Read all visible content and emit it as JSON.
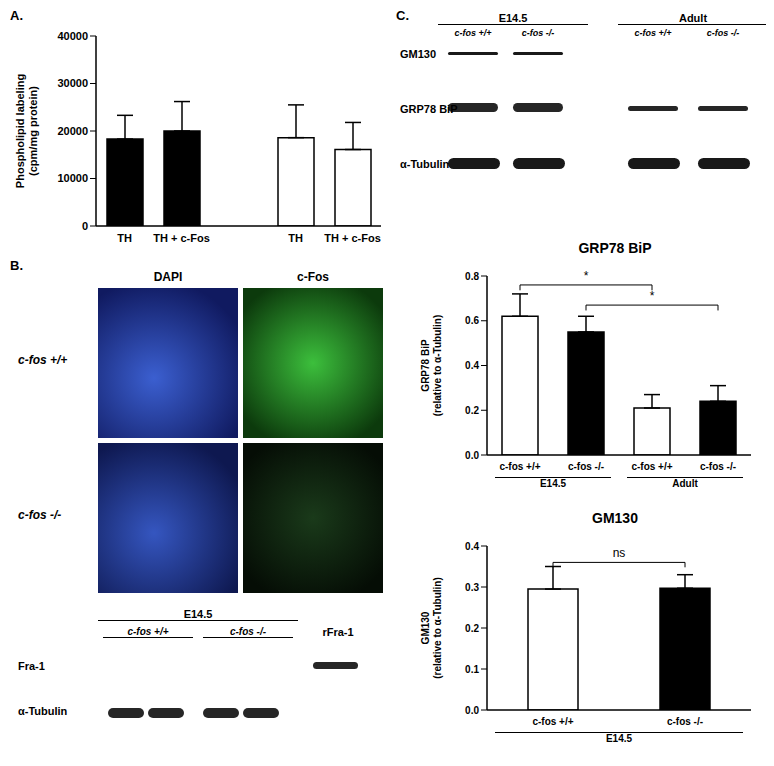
{
  "panels": [
    "A.",
    "B.",
    "C."
  ],
  "chart_data": [
    {
      "type": "bar",
      "ylabel": [
        "Phospholipid labeling",
        "(cpm/mg protein)"
      ],
      "categories": [
        "TH",
        "TH + c-Fos",
        null,
        "TH",
        "TH + c-Fos"
      ],
      "values": [
        18300,
        20000,
        null,
        18600,
        16100
      ],
      "errors": [
        5000,
        6200,
        null,
        6900,
        5700
      ],
      "colors": [
        "#000000",
        "#000000",
        "#000000",
        "#ffffff",
        "#ffffff"
      ],
      "ylim": [
        0,
        40000
      ],
      "yticks": [
        0,
        10000,
        20000,
        30000,
        40000
      ]
    },
    {
      "type": "bar",
      "title": "GRP78 BiP",
      "ylabel": [
        "GRP78 BiP",
        "(relative to α-Tubulin)"
      ],
      "categories": [
        "c-fos +/+",
        "c-fos -/-",
        "c-fos +/+",
        "c-fos -/-"
      ],
      "groups": [
        "E14.5",
        "Adult"
      ],
      "values": [
        0.62,
        0.55,
        0.21,
        0.24
      ],
      "errors": [
        0.1,
        0.07,
        0.06,
        0.07
      ],
      "colors": [
        "#ffffff",
        "#000000",
        "#ffffff",
        "#000000"
      ],
      "ylim": [
        0,
        0.8
      ],
      "yticks": [
        {
          "value": 0,
          "label": "0.0"
        },
        {
          "value": 0.2,
          "label": "0.2"
        },
        {
          "value": 0.4,
          "label": "0.4"
        },
        {
          "value": 0.6,
          "label": "0.6"
        },
        {
          "value": 0.8,
          "label": "0.8"
        }
      ],
      "significance": [
        {
          "from": 0,
          "to": 2,
          "y": 0.76,
          "label": "*"
        },
        {
          "from": 1,
          "to": 3,
          "y": 0.67,
          "label": "*"
        }
      ]
    },
    {
      "type": "bar",
      "title": "GM130",
      "ylabel": [
        "GM130",
        "(relative to α-Tubulin)"
      ],
      "categories": [
        "c-fos +/+",
        "c-fos -/-"
      ],
      "groups": [
        "E14.5"
      ],
      "values": [
        0.295,
        0.297
      ],
      "errors": [
        0.055,
        0.033
      ],
      "colors": [
        "#ffffff",
        "#000000"
      ],
      "ylim": [
        0,
        0.4
      ],
      "yticks": [
        {
          "value": 0,
          "label": "0.0"
        },
        {
          "value": 0.1,
          "label": "0.1"
        },
        {
          "value": 0.2,
          "label": "0.2"
        },
        {
          "value": 0.3,
          "label": "0.3"
        },
        {
          "value": 0.4,
          "label": "0.4"
        }
      ],
      "significance": [
        {
          "from": 0,
          "to": 1,
          "y": 0.36,
          "label": "ns"
        }
      ]
    }
  ],
  "microscopy": {
    "columns": [
      "DAPI",
      "c-Fos"
    ],
    "rows": [
      "c-fos +/+",
      "c-fos -/-"
    ]
  },
  "blot_B": {
    "group": "E14.5",
    "lanes": [
      "c-fos +/+",
      "c-fos -/-"
    ],
    "extra_lane": "rFra-1",
    "rows": [
      "Fra-1",
      "α-Tubulin"
    ]
  },
  "blot_C": {
    "groups": [
      "E14.5",
      "Adult"
    ],
    "lanes": [
      "c-fos +/+",
      "c-fos -/-",
      "c-fos +/+",
      "c-fos -/-"
    ],
    "rows": [
      "GM130",
      "GRP78 BiP",
      "α-Tubulin"
    ]
  }
}
